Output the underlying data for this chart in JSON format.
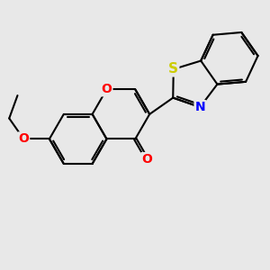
{
  "bg_color": "#e8e8e8",
  "bond_color": "#000000",
  "bond_width": 1.5,
  "atom_colors": {
    "O": "#ff0000",
    "N": "#0000ff",
    "S": "#cccc00",
    "C": "#000000"
  },
  "font_size": 10
}
